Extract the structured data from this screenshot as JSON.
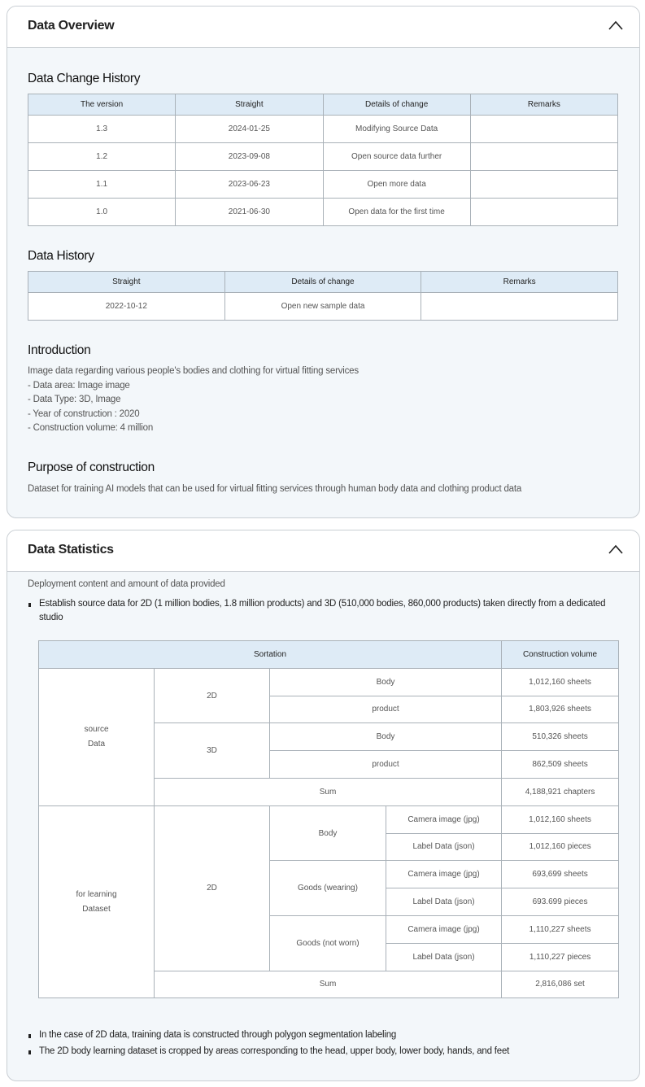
{
  "overview": {
    "title": "Data Overview",
    "toggle_icon": "chevron-up-icon",
    "change_history": {
      "title": "Data Change History",
      "headers": [
        "The version",
        "Straight",
        "Details of change",
        "Remarks"
      ],
      "rows": [
        [
          "1.3",
          "2024-01-25",
          "Modifying Source Data",
          ""
        ],
        [
          "1.2",
          "2023-09-08",
          "Open source data further",
          ""
        ],
        [
          "1.1",
          "2023-06-23",
          "Open more data",
          ""
        ],
        [
          "1.0",
          "2021-06-30",
          "Open data for the first time",
          ""
        ]
      ]
    },
    "data_history": {
      "title": "Data History",
      "headers": [
        "Straight",
        "Details of change",
        "Remarks"
      ],
      "rows": [
        [
          "2022-10-12",
          "Open new sample data",
          ""
        ]
      ]
    },
    "introduction": {
      "title": "Introduction",
      "lines": [
        "Image data regarding various people's bodies and clothing for virtual fitting services",
        "- Data area: Image image",
        "- Data Type: 3D, Image",
        "- Year of construction : 2020",
        "- Construction volume: 4 million"
      ]
    },
    "purpose": {
      "title": "Purpose of construction",
      "text": "Dataset for training AI models that can be used for virtual fitting services through human body data and clothing product data"
    }
  },
  "statistics": {
    "title": "Data Statistics",
    "toggle_icon": "chevron-up-icon",
    "subtitle": "Deployment content and amount of data provided",
    "bullet_top": "Establish source data for 2D (1 million bodies, 1.8 million products) and 3D (510,000 bodies, 860,000 products) taken directly from a dedicated studio",
    "table": {
      "headers": [
        "Sortation",
        "Construction volume"
      ],
      "source": {
        "label1": "source",
        "label2": "Data",
        "d2": "2D",
        "d3": "3D",
        "body": "Body",
        "product": "product",
        "v2body": "1,012,160 sheets",
        "v2product": "1,803,926 sheets",
        "v3body": "510,326 sheets",
        "v3product": "862,509 sheets",
        "sum_label": "Sum",
        "sum": "4,188,921 chapters"
      },
      "learning": {
        "label1": "for learning",
        "label2": "Dataset",
        "d2": "2D",
        "body": "Body",
        "wearing": "Goods (wearing)",
        "notworn": "Goods (not worn)",
        "camera": "Camera image (jpg)",
        "label": "Label Data (json)",
        "values": [
          "1,012,160 sheets",
          "1,012,160 pieces",
          "693,699 sheets",
          "693.699 pieces",
          "1,110,227 sheets",
          "1,110,227 pieces"
        ],
        "sum_label": "Sum",
        "sum": "2,816,086 set"
      }
    },
    "bullets_bottom": [
      "In the case of 2D data, training data is constructed through polygon segmentation labeling",
      "The 2D body learning dataset is cropped by areas corresponding to the head, upper body, lower body, hands, and feet"
    ]
  }
}
